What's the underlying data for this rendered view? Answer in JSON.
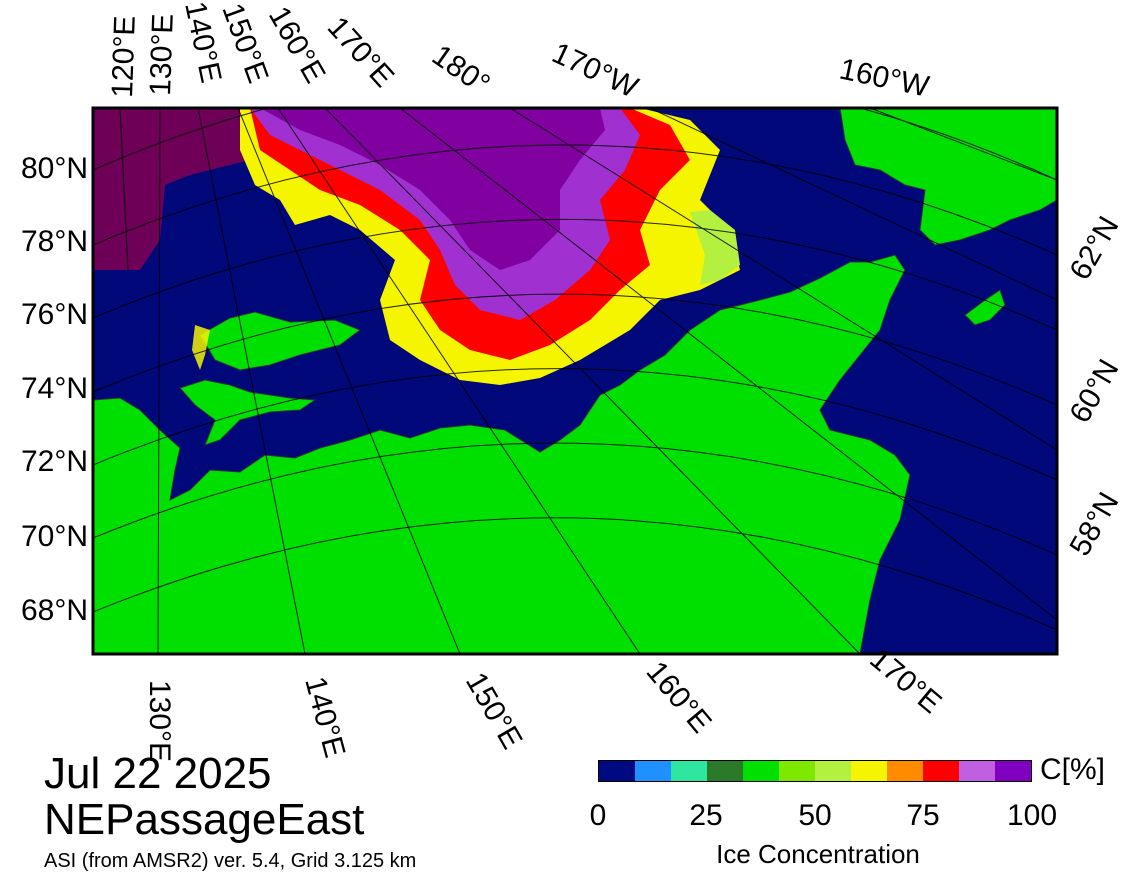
{
  "header": {
    "date": "Jul 22 2025",
    "region": "NEPassageEast",
    "source": "ASI (from AMSR2) ver. 5.4,  Grid 3.125 km"
  },
  "colorbar": {
    "unit": "C[%]",
    "title": "Ice Concentration",
    "ticks": [
      "0",
      "25",
      "50",
      "75",
      "100"
    ],
    "colors": [
      "#000a80",
      "#1e90ff",
      "#2ee6a0",
      "#2a7a2a",
      "#00e000",
      "#7ee800",
      "#b4f040",
      "#f5f500",
      "#ff8c00",
      "#ff0000",
      "#c060e0",
      "#8000c0"
    ]
  },
  "map": {
    "ocean_color": "#00087a",
    "land_color": "#00e000",
    "lat_labels_left": [
      "80°N",
      "78°N",
      "76°N",
      "74°N",
      "72°N",
      "70°N",
      "68°N"
    ],
    "lat_labels_right": [
      "62°N",
      "60°N",
      "58°N"
    ],
    "lon_labels_top": [
      "120°E",
      "130°E",
      "140°E",
      "150°E",
      "160°E",
      "170°E",
      "180°",
      "170°W",
      "160°W"
    ],
    "lon_labels_bottom": [
      "130°E",
      "140°E",
      "150°E",
      "160°E",
      "170°E"
    ]
  }
}
